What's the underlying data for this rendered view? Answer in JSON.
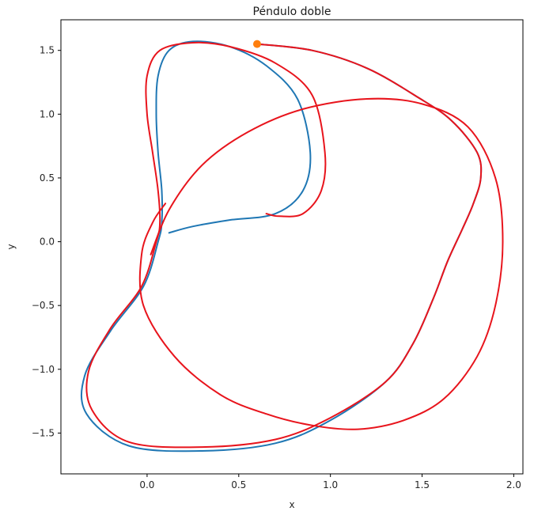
{
  "chart_data": {
    "type": "line",
    "title": "Péndulo doble",
    "xlabel": "x",
    "ylabel": "y",
    "xlim": [
      -0.47,
      2.05
    ],
    "ylim": [
      -1.82,
      1.74
    ],
    "xticks": [
      0.0,
      0.5,
      1.0,
      1.5,
      2.0
    ],
    "xtick_labels": [
      "0.0",
      "0.5",
      "1.0",
      "1.5",
      "2.0"
    ],
    "yticks": [
      -1.5,
      -1.0,
      -0.5,
      0.0,
      0.5,
      1.0,
      1.5
    ],
    "ytick_labels": [
      "−1.5",
      "−1.0",
      "−0.5",
      "0.0",
      "0.5",
      "1.0",
      "1.5"
    ],
    "grid": false,
    "colors": {
      "series_blue": "#1f77b4",
      "series_red": "#e8141c",
      "marker": "#ff7f0e"
    },
    "series": [
      {
        "color": "#1f77b4",
        "points": [
          [
            0.6,
            1.55
          ],
          [
            0.9,
            1.5
          ],
          [
            1.2,
            1.36
          ],
          [
            1.48,
            1.13
          ],
          [
            1.66,
            0.95
          ],
          [
            1.8,
            0.7
          ],
          [
            1.82,
            0.5
          ],
          [
            1.78,
            0.3
          ],
          [
            1.72,
            0.1
          ],
          [
            1.64,
            -0.15
          ],
          [
            1.56,
            -0.45
          ],
          [
            1.45,
            -0.8
          ],
          [
            1.3,
            -1.1
          ],
          [
            1.0,
            -1.4
          ],
          [
            0.7,
            -1.58
          ],
          [
            0.3,
            -1.64
          ],
          [
            -0.1,
            -1.6
          ],
          [
            -0.33,
            -1.35
          ],
          [
            -0.34,
            -1.05
          ],
          [
            -0.2,
            -0.7
          ],
          [
            -0.02,
            -0.35
          ],
          [
            0.06,
            0.0
          ],
          [
            0.08,
            0.15
          ],
          [
            0.08,
            0.4
          ],
          [
            0.06,
            0.7
          ],
          [
            0.05,
            1.0
          ],
          [
            0.06,
            1.3
          ],
          [
            0.12,
            1.5
          ],
          [
            0.25,
            1.57
          ],
          [
            0.45,
            1.53
          ],
          [
            0.65,
            1.38
          ],
          [
            0.82,
            1.12
          ],
          [
            0.89,
            0.7
          ],
          [
            0.85,
            0.4
          ],
          [
            0.7,
            0.22
          ],
          [
            0.45,
            0.17
          ],
          [
            0.25,
            0.12
          ],
          [
            0.12,
            0.07
          ]
        ]
      },
      {
        "color": "#e8141c",
        "points": [
          [
            0.6,
            1.55
          ],
          [
            0.9,
            1.5
          ],
          [
            1.2,
            1.36
          ],
          [
            1.48,
            1.13
          ],
          [
            1.66,
            0.95
          ],
          [
            1.8,
            0.7
          ],
          [
            1.82,
            0.5
          ],
          [
            1.78,
            0.3
          ],
          [
            1.72,
            0.1
          ],
          [
            1.64,
            -0.15
          ],
          [
            1.56,
            -0.45
          ],
          [
            1.45,
            -0.8
          ],
          [
            1.3,
            -1.1
          ],
          [
            1.0,
            -1.38
          ],
          [
            0.7,
            -1.55
          ],
          [
            0.3,
            -1.61
          ],
          [
            -0.1,
            -1.57
          ],
          [
            -0.3,
            -1.32
          ],
          [
            -0.32,
            -1.02
          ],
          [
            -0.2,
            -0.68
          ],
          [
            -0.03,
            -0.35
          ],
          [
            0.05,
            0.0
          ],
          [
            0.07,
            0.15
          ],
          [
            0.06,
            0.4
          ],
          [
            0.03,
            0.7
          ],
          [
            0.0,
            1.0
          ],
          [
            0.0,
            1.3
          ],
          [
            0.07,
            1.5
          ],
          [
            0.25,
            1.56
          ],
          [
            0.45,
            1.53
          ],
          [
            0.7,
            1.4
          ],
          [
            0.9,
            1.15
          ],
          [
            0.97,
            0.7
          ],
          [
            0.95,
            0.4
          ],
          [
            0.85,
            0.22
          ],
          [
            0.72,
            0.2
          ],
          [
            0.65,
            0.22
          ]
        ]
      },
      {
        "color": "#e8141c",
        "points": [
          [
            0.02,
            -0.1
          ],
          [
            0.12,
            0.25
          ],
          [
            0.3,
            0.6
          ],
          [
            0.55,
            0.86
          ],
          [
            0.85,
            1.04
          ],
          [
            1.2,
            1.12
          ],
          [
            1.5,
            1.08
          ],
          [
            1.75,
            0.9
          ],
          [
            1.9,
            0.5
          ],
          [
            1.94,
            0.0
          ],
          [
            1.9,
            -0.5
          ],
          [
            1.8,
            -0.9
          ],
          [
            1.62,
            -1.23
          ],
          [
            1.4,
            -1.4
          ],
          [
            1.15,
            -1.47
          ],
          [
            0.9,
            -1.44
          ],
          [
            0.65,
            -1.35
          ],
          [
            0.4,
            -1.2
          ],
          [
            0.15,
            -0.9
          ],
          [
            -0.02,
            -0.5
          ],
          [
            -0.03,
            -0.1
          ],
          [
            0.03,
            0.15
          ],
          [
            0.1,
            0.3
          ]
        ]
      }
    ],
    "marker": {
      "x": 0.6,
      "y": 1.55
    }
  }
}
